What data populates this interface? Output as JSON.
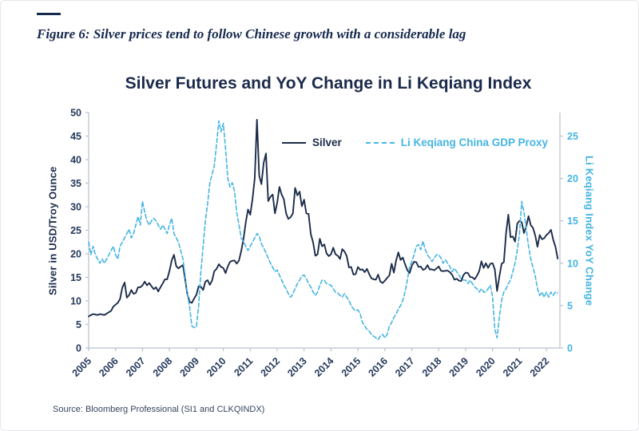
{
  "page": {
    "figure_caption": "Figure 6: Silver prices tend to follow Chinese growth with a considerable lag",
    "source": "Source: Bloomberg Professional (SI1 and CLKQINDX)"
  },
  "colors": {
    "navy": "#1b2b49",
    "light_blue": "#45b5e2",
    "axis_gray": "#b9c0ca",
    "tick_text_navy": "#25395c"
  },
  "chart_data": {
    "type": "line",
    "title": "Silver Futures and YoY Change in Li Keqiang Index",
    "frequency": "monthly",
    "x_domain": [
      2005,
      2022.5
    ],
    "x_ticks": [
      2005,
      2006,
      2007,
      2008,
      2009,
      2010,
      2011,
      2012,
      2013,
      2014,
      2015,
      2016,
      2017,
      2018,
      2019,
      2020,
      2021,
      2022
    ],
    "grid": false,
    "legend_position": "top-center-inside",
    "left_axis": {
      "label": "Silver in USD/Troy Ounce",
      "min": 0,
      "max": 50,
      "ticks": [
        0,
        5,
        10,
        15,
        20,
        25,
        30,
        35,
        40,
        45,
        50
      ]
    },
    "right_axis": {
      "label": "Li Keqiang Index YoY Change",
      "min": 0,
      "max": 27.78,
      "ticks": [
        0,
        5,
        10,
        15,
        20,
        25
      ]
    },
    "series": [
      {
        "name": "Silver",
        "axis": "left",
        "style": "solid",
        "color": "#1b2b49",
        "x_start": 2005.0,
        "values": [
          6.7,
          7.0,
          7.2,
          7.1,
          7.0,
          7.2,
          7.1,
          7.0,
          7.3,
          7.6,
          7.9,
          8.8,
          9.2,
          9.6,
          10.4,
          12.8,
          13.9,
          10.7,
          11.2,
          12.3,
          11.5,
          11.7,
          12.9,
          12.9,
          13.3,
          14.1,
          13.3,
          13.8,
          13.1,
          12.5,
          12.9,
          12.0,
          12.9,
          13.7,
          14.6,
          14.6,
          16.3,
          18.6,
          19.8,
          17.4,
          16.9,
          17.3,
          17.6,
          14.6,
          11.4,
          9.8,
          9.6,
          10.5,
          11.3,
          13.1,
          13.0,
          12.3,
          14.1,
          14.4,
          13.4,
          14.3,
          16.3,
          16.8,
          17.8,
          17.2,
          17.0,
          15.9,
          17.3,
          18.3,
          18.5,
          18.6,
          17.9,
          18.6,
          20.6,
          23.2,
          26.7,
          29.4,
          28.3,
          31.6,
          36.0,
          48.5,
          36.6,
          34.8,
          39.3,
          41.3,
          31.2,
          32.1,
          32.6,
          28.6,
          30.8,
          34.2,
          32.6,
          31.6,
          28.6,
          27.4,
          27.8,
          28.6,
          34.0,
          32.4,
          33.2,
          30.1,
          31.5,
          28.6,
          28.5,
          24.2,
          22.4,
          19.6,
          19.9,
          23.2,
          21.6,
          22.0,
          20.1,
          19.5,
          19.9,
          21.3,
          19.9,
          19.6,
          18.9,
          21.0,
          20.5,
          19.5,
          17.1,
          17.2,
          15.6,
          15.7,
          17.2,
          16.6,
          16.7,
          16.1,
          16.8,
          15.7,
          14.8,
          14.6,
          14.5,
          15.6,
          14.1,
          13.8,
          14.3,
          14.9,
          15.4,
          17.9,
          16.0,
          18.6,
          20.3,
          18.7,
          19.2,
          17.8,
          16.5,
          15.9,
          17.5,
          18.3,
          18.2,
          17.2,
          17.3,
          16.6,
          16.8,
          17.6,
          16.7,
          16.7,
          16.5,
          16.9,
          17.3,
          16.4,
          16.3,
          16.4,
          16.4,
          16.1,
          15.5,
          14.5,
          14.7,
          14.3,
          14.2,
          15.5,
          16.0,
          15.9,
          15.1,
          15.0,
          14.6,
          15.3,
          16.3,
          18.4,
          17.0,
          18.0,
          17.0,
          17.9,
          18.0,
          16.7,
          12.1,
          15.1,
          17.9,
          18.2,
          24.4,
          28.3,
          23.5,
          23.7,
          22.6,
          26.4,
          27.0,
          26.7,
          24.4,
          25.9,
          28.0,
          26.1,
          25.5,
          23.9,
          21.5,
          24.0,
          23.1,
          23.3,
          24.0,
          24.4,
          25.1,
          23.0,
          21.5,
          19.0
        ]
      },
      {
        "name": "Li Keqiang China GDP Proxy",
        "axis": "right",
        "style": "dashed",
        "color": "#45b5e2",
        "x_start": 2005.0,
        "values": [
          12.5,
          11.0,
          12.0,
          11.0,
          10.5,
          10.0,
          10.5,
          10.0,
          10.5,
          11.0,
          11.5,
          12.0,
          11.0,
          10.5,
          12.0,
          12.5,
          13.0,
          13.5,
          14.0,
          13.0,
          13.5,
          14.5,
          15.5,
          14.5,
          17.3,
          16.0,
          15.0,
          14.5,
          15.0,
          15.3,
          15.0,
          14.5,
          14.0,
          14.5,
          14.0,
          13.5,
          14.5,
          15.3,
          13.5,
          13.0,
          12.5,
          11.5,
          10.5,
          8.5,
          6.5,
          4.8,
          2.6,
          2.4,
          2.5,
          5.0,
          9.0,
          12.0,
          15.0,
          17.0,
          19.5,
          20.5,
          21.5,
          24.0,
          26.8,
          25.5,
          26.5,
          23.5,
          20.0,
          19.0,
          19.5,
          18.5,
          16.0,
          14.5,
          13.0,
          12.5,
          12.0,
          11.5,
          12.0,
          12.5,
          13.0,
          13.5,
          13.2,
          12.3,
          11.8,
          11.2,
          10.6,
          10.0,
          9.5,
          9.0,
          9.2,
          8.6,
          8.0,
          7.4,
          7.0,
          6.4,
          6.0,
          6.4,
          7.0,
          7.6,
          8.0,
          8.5,
          8.6,
          8.2,
          7.6,
          7.2,
          6.6,
          6.2,
          6.6,
          7.4,
          8.0,
          8.0,
          7.6,
          7.5,
          7.4,
          7.0,
          6.6,
          6.5,
          6.2,
          6.0,
          6.4,
          6.0,
          5.6,
          5.0,
          4.6,
          4.4,
          4.5,
          4.0,
          3.0,
          2.6,
          2.2,
          2.0,
          1.6,
          1.4,
          1.2,
          1.0,
          1.4,
          1.6,
          1.2,
          1.6,
          2.6,
          3.0,
          3.6,
          4.0,
          4.6,
          5.0,
          5.6,
          6.6,
          8.0,
          9.6,
          10.2,
          11.0,
          12.0,
          12.2,
          11.6,
          12.6,
          11.6,
          11.0,
          10.6,
          10.2,
          10.6,
          11.0,
          11.0,
          10.6,
          10.0,
          10.4,
          10.0,
          9.6,
          9.0,
          9.4,
          9.0,
          8.6,
          8.2,
          8.0,
          8.0,
          7.6,
          8.0,
          7.6,
          7.2,
          7.0,
          6.6,
          7.0,
          6.6,
          6.6,
          7.0,
          7.4,
          6.0,
          2.2,
          1.2,
          3.6,
          5.6,
          6.6,
          7.0,
          7.6,
          8.0,
          9.0,
          10.0,
          11.5,
          13.5,
          17.3,
          16.0,
          14.0,
          12.0,
          10.5,
          9.5,
          8.5,
          7.0,
          6.2,
          6.6,
          6.0,
          6.6,
          6.0,
          6.6,
          6.2,
          6.6,
          6.5
        ]
      }
    ]
  }
}
